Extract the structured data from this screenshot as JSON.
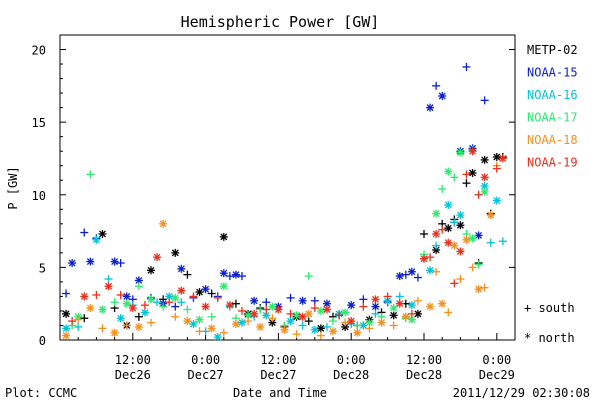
{
  "chart_data": {
    "type": "scatter",
    "title": "Hemispheric Power [GW]",
    "xlabel": "Date and Time",
    "ylabel": "P [GW]",
    "x_unit": "hours",
    "ylim": [
      0,
      21
    ],
    "y_ticks": [
      0,
      5,
      10,
      15,
      20
    ],
    "x_ticks": [
      {
        "x": 12,
        "time": "12:00",
        "date": "Dec26"
      },
      {
        "x": 24,
        "time": "0:00",
        "date": "Dec27"
      },
      {
        "x": 36,
        "time": "12:00",
        "date": "Dec27"
      },
      {
        "x": 48,
        "time": "0:00",
        "date": "Dec28"
      },
      {
        "x": 60,
        "time": "12:00",
        "date": "Dec28"
      },
      {
        "x": 72,
        "time": "0:00",
        "date": "Dec29"
      }
    ],
    "legend_placement": "right",
    "series": [
      {
        "name": "METP-02",
        "color": "#000000",
        "points": [
          [
            1,
            1.8
          ],
          [
            4,
            1.5
          ],
          [
            7,
            7.3
          ],
          [
            9,
            2.2
          ],
          [
            11,
            1.0
          ],
          [
            13,
            1.6
          ],
          [
            15,
            4.8
          ],
          [
            17,
            2.8
          ],
          [
            19,
            6.0
          ],
          [
            21,
            4.5
          ],
          [
            23,
            3.3
          ],
          [
            25,
            3.2
          ],
          [
            27,
            7.1
          ],
          [
            29,
            2.5
          ],
          [
            31,
            1.8
          ],
          [
            33,
            2.2
          ],
          [
            35,
            1.2
          ],
          [
            37,
            0.9
          ],
          [
            39,
            1.6
          ],
          [
            41,
            1.3
          ],
          [
            43,
            0.8
          ],
          [
            45,
            1.6
          ],
          [
            47,
            0.9
          ],
          [
            49,
            1.0
          ],
          [
            51,
            1.4
          ],
          [
            53,
            1.9
          ],
          [
            55,
            1.7
          ],
          [
            57,
            2.5
          ],
          [
            59,
            1.8
          ],
          [
            60,
            7.3
          ],
          [
            62,
            6.2
          ],
          [
            63,
            8.0
          ],
          [
            64,
            7.7
          ],
          [
            65,
            8.3
          ],
          [
            66,
            7.9
          ],
          [
            67,
            10.8
          ],
          [
            68,
            11.5
          ],
          [
            69,
            5.3
          ],
          [
            70,
            12.4
          ],
          [
            71,
            8.7
          ],
          [
            72,
            12.6
          ],
          [
            73,
            12.6
          ]
        ]
      },
      {
        "name": "NOAA-15",
        "color": "#0a1fd0",
        "points": [
          [
            1,
            3.2
          ],
          [
            2,
            5.3
          ],
          [
            4,
            7.4
          ],
          [
            5,
            5.4
          ],
          [
            6,
            7.0
          ],
          [
            9,
            5.4
          ],
          [
            10,
            5.3
          ],
          [
            11,
            3.0
          ],
          [
            12,
            2.8
          ],
          [
            13,
            4.1
          ],
          [
            15,
            2.9
          ],
          [
            17,
            2.5
          ],
          [
            19,
            2.3
          ],
          [
            20,
            4.9
          ],
          [
            22,
            2.9
          ],
          [
            24,
            3.5
          ],
          [
            26,
            3.0
          ],
          [
            27,
            4.6
          ],
          [
            28,
            4.4
          ],
          [
            29,
            4.5
          ],
          [
            30,
            4.4
          ],
          [
            32,
            2.7
          ],
          [
            34,
            2.6
          ],
          [
            36,
            2.3
          ],
          [
            38,
            2.9
          ],
          [
            40,
            2.7
          ],
          [
            42,
            2.7
          ],
          [
            44,
            2.5
          ],
          [
            46,
            1.7
          ],
          [
            48,
            2.4
          ],
          [
            50,
            2.8
          ],
          [
            52,
            2.3
          ],
          [
            54,
            2.6
          ],
          [
            56,
            4.4
          ],
          [
            57,
            4.5
          ],
          [
            58,
            4.7
          ],
          [
            59,
            4.3
          ],
          [
            61,
            16.0
          ],
          [
            62,
            17.5
          ],
          [
            63,
            16.8
          ],
          [
            65,
            8.1
          ],
          [
            66,
            13.0
          ],
          [
            67,
            18.8
          ],
          [
            68,
            13.2
          ],
          [
            70,
            16.5
          ],
          [
            69,
            7.2
          ]
        ]
      },
      {
        "name": "NOAA-16",
        "color": "#00c4d6",
        "points": [
          [
            1,
            0.8
          ],
          [
            3,
            0.9
          ],
          [
            6,
            6.9
          ],
          [
            8,
            4.2
          ],
          [
            10,
            1.5
          ],
          [
            12,
            2.4
          ],
          [
            14,
            1.9
          ],
          [
            16,
            2.6
          ],
          [
            18,
            3.0
          ],
          [
            20,
            2.6
          ],
          [
            22,
            1.1
          ],
          [
            24,
            0.6
          ],
          [
            26,
            0.2
          ],
          [
            28,
            2.3
          ],
          [
            30,
            1.2
          ],
          [
            32,
            1.6
          ],
          [
            34,
            1.7
          ],
          [
            36,
            2.1
          ],
          [
            38,
            1.3
          ],
          [
            40,
            1.0
          ],
          [
            42,
            0.7
          ],
          [
            44,
            0.9
          ],
          [
            46,
            1.8
          ],
          [
            48,
            1.1
          ],
          [
            50,
            1.0
          ],
          [
            52,
            1.8
          ],
          [
            54,
            2.7
          ],
          [
            56,
            3.0
          ],
          [
            58,
            2.4
          ],
          [
            60,
            5.6
          ],
          [
            61,
            4.8
          ],
          [
            62,
            6.5
          ],
          [
            64,
            9.3
          ],
          [
            65,
            8.1
          ],
          [
            66,
            8.6
          ],
          [
            68,
            13.1
          ],
          [
            70,
            10.6
          ],
          [
            71,
            6.7
          ],
          [
            72,
            9.6
          ],
          [
            73,
            6.8
          ]
        ]
      },
      {
        "name": "NOAA-17",
        "color": "#30e870",
        "points": [
          [
            2,
            1.0
          ],
          [
            3,
            1.6
          ],
          [
            5,
            11.4
          ],
          [
            7,
            2.1
          ],
          [
            9,
            2.6
          ],
          [
            11,
            2.5
          ],
          [
            13,
            3.7
          ],
          [
            15,
            2.8
          ],
          [
            17,
            2.3
          ],
          [
            19,
            2.9
          ],
          [
            21,
            2.1
          ],
          [
            23,
            1.4
          ],
          [
            25,
            1.6
          ],
          [
            27,
            3.7
          ],
          [
            29,
            1.5
          ],
          [
            31,
            1.7
          ],
          [
            33,
            2.1
          ],
          [
            35,
            2.3
          ],
          [
            37,
            1.0
          ],
          [
            39,
            1.7
          ],
          [
            41,
            4.4
          ],
          [
            43,
            2.0
          ],
          [
            45,
            1.3
          ],
          [
            47,
            1.9
          ],
          [
            49,
            1.0
          ],
          [
            51,
            1.2
          ],
          [
            53,
            1.6
          ],
          [
            55,
            2.2
          ],
          [
            57,
            1.5
          ],
          [
            58,
            1.4
          ],
          [
            60,
            5.9
          ],
          [
            62,
            8.7
          ],
          [
            63,
            10.4
          ],
          [
            64,
            11.6
          ],
          [
            65,
            11.2
          ],
          [
            66,
            12.9
          ],
          [
            67,
            7.3
          ],
          [
            68,
            7.0
          ],
          [
            69,
            5.2
          ],
          [
            70,
            10.2
          ]
        ]
      },
      {
        "name": "NOAA-18",
        "color": "#f4901e",
        "points": [
          [
            1,
            0.3
          ],
          [
            3,
            1.4
          ],
          [
            5,
            2.2
          ],
          [
            7,
            0.8
          ],
          [
            9,
            0.5
          ],
          [
            11,
            1.0
          ],
          [
            13,
            0.9
          ],
          [
            15,
            1.2
          ],
          [
            17,
            8.0
          ],
          [
            19,
            1.6
          ],
          [
            21,
            1.3
          ],
          [
            23,
            0.6
          ],
          [
            25,
            0.8
          ],
          [
            27,
            0.5
          ],
          [
            29,
            1.1
          ],
          [
            31,
            1.3
          ],
          [
            33,
            0.9
          ],
          [
            35,
            1.5
          ],
          [
            37,
            0.7
          ],
          [
            39,
            0.4
          ],
          [
            41,
            1.8
          ],
          [
            43,
            0.3
          ],
          [
            45,
            0.6
          ],
          [
            47,
            1.2
          ],
          [
            49,
            0.5
          ],
          [
            51,
            0.8
          ],
          [
            53,
            1.2
          ],
          [
            55,
            1.0
          ],
          [
            57,
            1.6
          ],
          [
            59,
            2.7
          ],
          [
            61,
            2.3
          ],
          [
            62,
            4.7
          ],
          [
            63,
            2.5
          ],
          [
            64,
            1.9
          ],
          [
            65,
            6.5
          ],
          [
            66,
            4.2
          ],
          [
            67,
            6.9
          ],
          [
            68,
            5.0
          ],
          [
            69,
            3.5
          ],
          [
            70,
            3.6
          ],
          [
            71,
            8.6
          ],
          [
            72,
            12.0
          ]
        ]
      },
      {
        "name": "NOAA-19",
        "color": "#e8301c",
        "points": [
          [
            2,
            1.3
          ],
          [
            4,
            3.0
          ],
          [
            6,
            3.1
          ],
          [
            8,
            3.7
          ],
          [
            10,
            3.1
          ],
          [
            12,
            2.2
          ],
          [
            14,
            2.4
          ],
          [
            16,
            5.7
          ],
          [
            18,
            2.6
          ],
          [
            20,
            3.4
          ],
          [
            22,
            3.0
          ],
          [
            24,
            2.3
          ],
          [
            26,
            2.9
          ],
          [
            28,
            2.4
          ],
          [
            30,
            2.0
          ],
          [
            32,
            1.8
          ],
          [
            34,
            2.1
          ],
          [
            36,
            2.1
          ],
          [
            38,
            1.8
          ],
          [
            40,
            1.6
          ],
          [
            42,
            2.2
          ],
          [
            44,
            2.1
          ],
          [
            46,
            1.7
          ],
          [
            48,
            1.3
          ],
          [
            50,
            2.3
          ],
          [
            52,
            2.8
          ],
          [
            54,
            3.0
          ],
          [
            56,
            2.5
          ],
          [
            58,
            1.8
          ],
          [
            60,
            5.6
          ],
          [
            61,
            5.7
          ],
          [
            62,
            7.3
          ],
          [
            63,
            7.6
          ],
          [
            64,
            6.7
          ],
          [
            65,
            3.9
          ],
          [
            66,
            6.1
          ],
          [
            67,
            11.4
          ],
          [
            68,
            13.0
          ],
          [
            69,
            10.0
          ],
          [
            70,
            11.2
          ],
          [
            72,
            11.8
          ],
          [
            73,
            12.5
          ]
        ]
      }
    ],
    "marker_legend": [
      {
        "symbol": "+",
        "label": "south"
      },
      {
        "symbol": "*",
        "label": "north"
      }
    ]
  },
  "footer": {
    "left": "Plot: CCMC",
    "center": "Date and Time",
    "right": "2011/12/29 02:30:08"
  }
}
